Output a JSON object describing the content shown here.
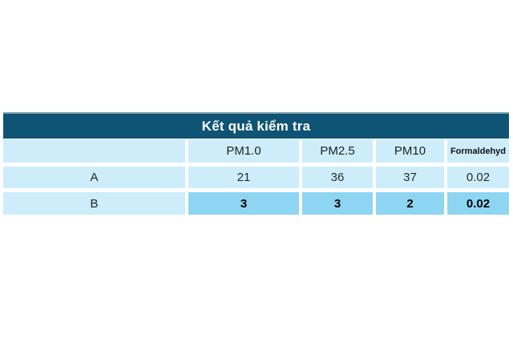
{
  "table": {
    "title": "Kết quả kiểm tra",
    "columns": [
      "",
      "PM1.0",
      "PM2.5",
      "PM10",
      "Formaldehyd"
    ],
    "rows": [
      {
        "label": "A",
        "values": [
          "21",
          "36",
          "37",
          "0.02"
        ],
        "highlight": false
      },
      {
        "label": "B",
        "values": [
          "3",
          "3",
          "2",
          "0.02"
        ],
        "highlight": true
      }
    ]
  },
  "colors": {
    "title_bar_bg": "#0f5474",
    "title_bar_top_edge": "#87a4b2",
    "title_text": "#ffffff",
    "cell_light_bg": "#cdedfb",
    "cell_highlight_bg": "#8ed5f3",
    "text_dark": "#222222",
    "page_bg": "#ffffff"
  },
  "chart_data": {
    "type": "table",
    "title": "Kết quả kiểm tra",
    "columns": [
      "",
      "PM1.0",
      "PM2.5",
      "PM10",
      "Formaldehyd"
    ],
    "rows": [
      [
        "A",
        21,
        36,
        37,
        0.02
      ],
      [
        "B",
        3,
        3,
        2,
        0.02
      ]
    ],
    "layout_hints": {
      "title_bar": "dark teal full-width band with white bold centered title",
      "body_cells": "light blue cells separated by white gaps",
      "row_B_data_cells": "darker blue highlight with bold numbers"
    }
  }
}
